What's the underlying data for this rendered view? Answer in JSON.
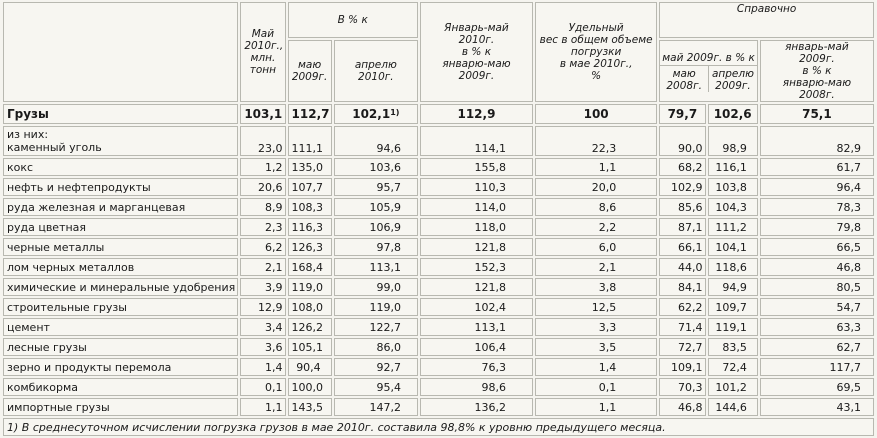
{
  "headers": {
    "may2010": [
      "Май",
      "2010г.,",
      "млн.",
      "тонн"
    ],
    "pct_group": "В % к",
    "pct_may2009": [
      "маю",
      "2009г."
    ],
    "pct_apr2010": [
      "апрелю 2010г."
    ],
    "jan_may": [
      "Январь-май",
      "2010г.",
      "в % к",
      "январю-маю 2009г."
    ],
    "share": [
      "Удельный",
      "вес в общем объеме",
      "погрузки",
      "в мае 2010г.,",
      "%"
    ],
    "ref_group": "Справочно",
    "ref_may2009": [
      "май 2009г. в % к"
    ],
    "ref_may2008": [
      "маю",
      "2008г."
    ],
    "ref_apr2009": [
      "апрелю",
      "2009г."
    ],
    "ref_janmay": [
      "январь-май",
      "2009г.",
      "в % к",
      "январю-маю 2008г."
    ]
  },
  "total": {
    "name": "Грузы",
    "values": [
      "103,1",
      "112,7",
      "102,1",
      "112,9",
      "100",
      "79,7",
      "102,6",
      "75,1"
    ],
    "footnote_mark": "1)"
  },
  "rows": [
    {
      "name": [
        "из них:",
        "каменный уголь"
      ],
      "values": [
        "23,0",
        "111,1",
        "94,6",
        "114,1",
        "22,3",
        "90,0",
        "98,9",
        "82,9"
      ]
    },
    {
      "name": [
        "кокс"
      ],
      "values": [
        "1,2",
        "135,0",
        "103,6",
        "155,8",
        "1,1",
        "68,2",
        "116,1",
        "61,7"
      ]
    },
    {
      "name": [
        "нефть и нефтепродукты"
      ],
      "values": [
        "20,6",
        "107,7",
        "95,7",
        "110,3",
        "20,0",
        "102,9",
        "103,8",
        "96,4"
      ]
    },
    {
      "name": [
        "руда железная и марганцевая"
      ],
      "values": [
        "8,9",
        "108,3",
        "105,9",
        "114,0",
        "8,6",
        "85,6",
        "104,3",
        "78,3"
      ]
    },
    {
      "name": [
        "руда цветная"
      ],
      "values": [
        "2,3",
        "116,3",
        "106,9",
        "118,0",
        "2,2",
        "87,1",
        "111,2",
        "79,8"
      ]
    },
    {
      "name": [
        "черные металлы"
      ],
      "values": [
        "6,2",
        "126,3",
        "97,8",
        "121,8",
        "6,0",
        "66,1",
        "104,1",
        "66,5"
      ]
    },
    {
      "name": [
        "лом черных металлов"
      ],
      "values": [
        "2,1",
        "168,4",
        "113,1",
        "152,3",
        "2,1",
        "44,0",
        "118,6",
        "46,8"
      ]
    },
    {
      "name": [
        "химические и минеральные удобрения"
      ],
      "values": [
        "3,9",
        "119,0",
        "99,0",
        "121,8",
        "3,8",
        "84,1",
        "94,9",
        "80,5"
      ]
    },
    {
      "name": [
        "строительные грузы"
      ],
      "values": [
        "12,9",
        "108,0",
        "119,0",
        "102,4",
        "12,5",
        "62,2",
        "109,7",
        "54,7"
      ]
    },
    {
      "name": [
        "цемент"
      ],
      "values": [
        "3,4",
        "126,2",
        "122,7",
        "113,1",
        "3,3",
        "71,4",
        "119,1",
        "63,3"
      ]
    },
    {
      "name": [
        "лесные грузы"
      ],
      "values": [
        "3,6",
        "105,1",
        "86,0",
        "106,4",
        "3,5",
        "72,7",
        "83,5",
        "62,7"
      ]
    },
    {
      "name": [
        "зерно и продукты перемола"
      ],
      "values": [
        "1,4",
        "90,4",
        "92,7",
        "76,3",
        "1,4",
        "109,1",
        "72,4",
        "117,7"
      ]
    },
    {
      "name": [
        "комбикорма"
      ],
      "values": [
        "0,1",
        "100,0",
        "95,4",
        "98,6",
        "0,1",
        "70,3",
        "101,2",
        "69,5"
      ]
    },
    {
      "name": [
        "импортные грузы"
      ],
      "values": [
        "1,1",
        "143,5",
        "147,2",
        "136,2",
        "1,1",
        "46,8",
        "144,6",
        "43,1"
      ]
    }
  ],
  "footnote": "1) В среднесуточном исчислении погрузка грузов в мае 2010г. составила 98,8% к уровню предыдущего месяца."
}
